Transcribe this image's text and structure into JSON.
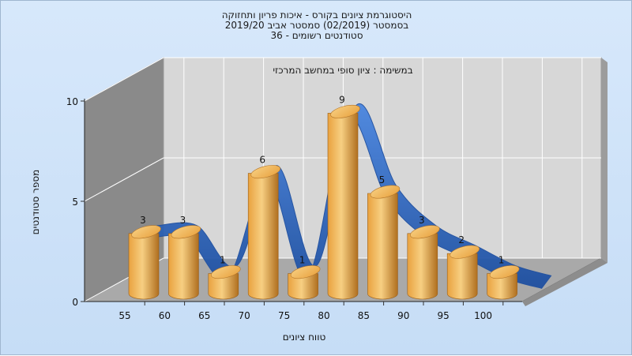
{
  "title_lines": [
    "היסטוגרמת ציונים בקורס - איכות פריון ותחזוקה",
    "בסמסטר  (02/2019)  סמסטר אביב 2019/20",
    "סטודנטים רשומים - 36"
  ],
  "colors": {
    "bar_light": "#f7cf82",
    "bar_mid": "#e9a23f",
    "bar_dark": "#b06f1f",
    "ribbon": "#2f6fd0",
    "ribbon_dark": "#1e4fa0",
    "back_wall": "#d7d7d7",
    "side_wall": "#8a8a8a",
    "floor": "#a9a9a9",
    "grid": "#ffffff"
  },
  "chart_data": {
    "type": "bar",
    "title": "במשימה : ציון סופי במחשב המרכזי",
    "xlabel": "טווח ציונים",
    "ylabel": "מספר סטודנטים",
    "categories": [
      "55",
      "60",
      "65",
      "70",
      "75",
      "80",
      "85",
      "90",
      "95",
      "100"
    ],
    "values": [
      3,
      3,
      1,
      6,
      1,
      9,
      5,
      3,
      2,
      1
    ],
    "y_ticks": [
      "0",
      "5",
      "10"
    ],
    "ylim": [
      0,
      10
    ],
    "overlay": "smoothed distribution ribbon",
    "grid": true
  }
}
